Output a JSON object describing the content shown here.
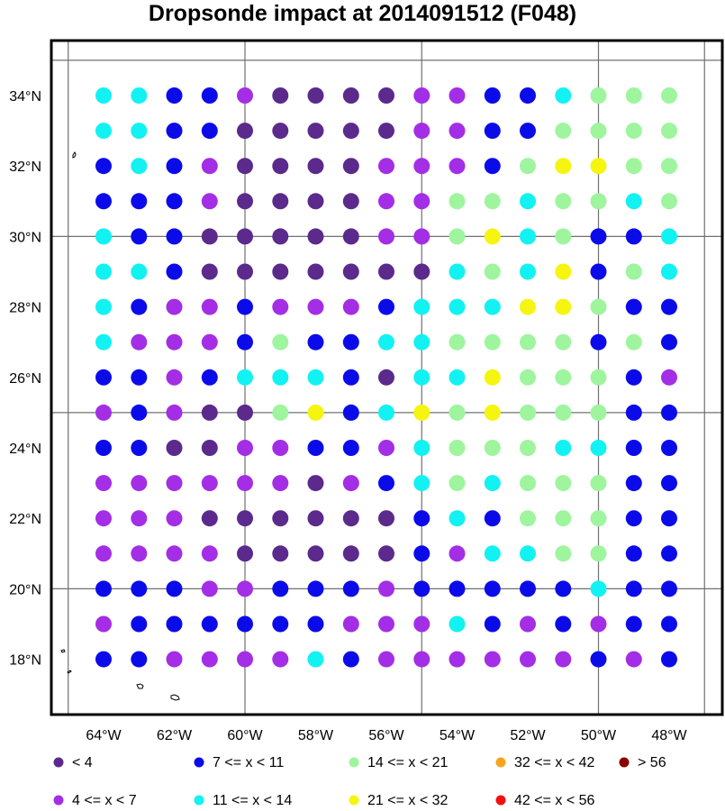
{
  "title": "Dropsonde impact at 2014091512 (F048)",
  "lon_labels": [
    "64°W",
    "62°W",
    "60°W",
    "58°W",
    "56°W",
    "54°W",
    "52°W",
    "50°W",
    "48°W"
  ],
  "lat_labels": [
    "34°N",
    "32°N",
    "30°N",
    "28°N",
    "26°N",
    "24°N",
    "22°N",
    "20°N",
    "18°N"
  ],
  "legend": [
    {
      "key": "c0",
      "label": "<  4",
      "color": "#5b2a8c"
    },
    {
      "key": "c1",
      "label": "4 <= x <  7",
      "color": "#a32ee6"
    },
    {
      "key": "c2",
      "label": "7 <= x < 11",
      "color": "#0b0bea"
    },
    {
      "key": "c3",
      "label": "11 <= x < 14",
      "color": "#12f2f2"
    },
    {
      "key": "c4",
      "label": "14 <= x < 21",
      "color": "#9ef59e"
    },
    {
      "key": "c5",
      "label": "21 <= x < 32",
      "color": "#f5f50f"
    },
    {
      "key": "c6",
      "label": "32 <= x < 42",
      "color": "#f5a51b"
    },
    {
      "key": "c7",
      "label": "42 <= x < 56",
      "color": "#f50f0f"
    },
    {
      "key": "c8",
      "label": "> 56",
      "color": "#8b0000"
    }
  ],
  "chart_data": {
    "type": "scatter",
    "title": "Dropsonde impact at 2014091512 (F048)",
    "lon_range": [
      -65.3,
      -46.9
    ],
    "lat_range": [
      16.7,
      35.5
    ],
    "grid_lon": [
      -65,
      -60,
      -55,
      -50,
      -47
    ],
    "grid_lat": [
      35,
      30,
      25,
      20
    ],
    "lons": [
      -64,
      -63,
      -62,
      -61,
      -60,
      -59,
      -58,
      -57,
      -56,
      -55,
      -54,
      -53,
      -52,
      -51,
      -50,
      -49,
      -48
    ],
    "lats": [
      34,
      33,
      32,
      31,
      30,
      29,
      28,
      27,
      26,
      25,
      24,
      23,
      22,
      21,
      20,
      19,
      18
    ],
    "categories": [
      "<  4",
      "4 <= x <  7",
      "7 <= x < 11",
      "11 <= x < 14",
      "14 <= x < 21",
      "21 <= x < 32",
      "32 <= x < 42",
      "42 <= x < 56",
      "> 56"
    ],
    "grid": [
      [
        "c3",
        "c3",
        "c2",
        "c2",
        "c1",
        "c0",
        "c0",
        "c0",
        "c0",
        "c1",
        "c1",
        "c2",
        "c2",
        "c3",
        "c4",
        "c4",
        "c4"
      ],
      [
        "c3",
        "c3",
        "c2",
        "c2",
        "c0",
        "c0",
        "c0",
        "c0",
        "c0",
        "c1",
        "c1",
        "c2",
        "c2",
        "c4",
        "c4",
        "c4",
        "c4"
      ],
      [
        "c2",
        "c3",
        "c2",
        "c1",
        "c0",
        "c0",
        "c0",
        "c0",
        "c1",
        "c1",
        "c1",
        "c2",
        "c4",
        "c5",
        "c5",
        "c4",
        "c4"
      ],
      [
        "c2",
        "c2",
        "c2",
        "c1",
        "c0",
        "c0",
        "c0",
        "c0",
        "c1",
        "c1",
        "c4",
        "c4",
        "c3",
        "c4",
        "c4",
        "c3",
        "c4"
      ],
      [
        "c3",
        "c2",
        "c2",
        "c0",
        "c0",
        "c0",
        "c0",
        "c0",
        "c1",
        "c1",
        "c4",
        "c5",
        "c3",
        "c4",
        "c2",
        "c2",
        "c3"
      ],
      [
        "c3",
        "c3",
        "c2",
        "c0",
        "c0",
        "c0",
        "c0",
        "c0",
        "c0",
        "c0",
        "c3",
        "c4",
        "c3",
        "c5",
        "c2",
        "c4",
        "c3"
      ],
      [
        "c3",
        "c2",
        "c1",
        "c1",
        "c2",
        "c1",
        "c1",
        "c1",
        "c2",
        "c3",
        "c3",
        "c3",
        "c5",
        "c5",
        "c4",
        "c2",
        "c2"
      ],
      [
        "c3",
        "c1",
        "c1",
        "c1",
        "c2",
        "c4",
        "c2",
        "c2",
        "c3",
        "c3",
        "c4",
        "c4",
        "c4",
        "c4",
        "c2",
        "c4",
        "c2"
      ],
      [
        "c2",
        "c2",
        "c1",
        "c2",
        "c3",
        "c3",
        "c3",
        "c2",
        "c0",
        "c3",
        "c3",
        "c5",
        "c4",
        "c4",
        "c4",
        "c2",
        "c1"
      ],
      [
        "c1",
        "c2",
        "c1",
        "c0",
        "c0",
        "c4",
        "c5",
        "c2",
        "c3",
        "c5",
        "c4",
        "c5",
        "c4",
        "c4",
        "c4",
        "c2",
        "c2"
      ],
      [
        "c2",
        "c2",
        "c0",
        "c0",
        "c1",
        "c1",
        "c2",
        "c2",
        "c1",
        "c3",
        "c4",
        "c4",
        "c4",
        "c3",
        "c3",
        "c2",
        "c2"
      ],
      [
        "c1",
        "c1",
        "c1",
        "c1",
        "c1",
        "c1",
        "c0",
        "c1",
        "c2",
        "c3",
        "c4",
        "c3",
        "c4",
        "c4",
        "c4",
        "c2",
        "c2"
      ],
      [
        "c1",
        "c1",
        "c1",
        "c0",
        "c0",
        "c0",
        "c0",
        "c0",
        "c0",
        "c2",
        "c3",
        "c2",
        "c4",
        "c4",
        "c4",
        "c2",
        "c2"
      ],
      [
        "c1",
        "c1",
        "c1",
        "c1",
        "c0",
        "c0",
        "c0",
        "c0",
        "c0",
        "c2",
        "c1",
        "c3",
        "c3",
        "c4",
        "c4",
        "c2",
        "c2"
      ],
      [
        "c2",
        "c2",
        "c2",
        "c1",
        "c1",
        "c2",
        "c2",
        "c2",
        "c1",
        "c2",
        "c2",
        "c2",
        "c2",
        "c2",
        "c3",
        "c2",
        "c2"
      ],
      [
        "c1",
        "c2",
        "c2",
        "c2",
        "c2",
        "c2",
        "c2",
        "c1",
        "c1",
        "c1",
        "c3",
        "c2",
        "c1",
        "c2",
        "c1",
        "c2",
        "c2"
      ],
      [
        "c2",
        "c2",
        "c1",
        "c1",
        "c1",
        "c1",
        "c3",
        "c2",
        "c1",
        "c1",
        "c1",
        "c1",
        "c1",
        "c1",
        "c2",
        "c1",
        "c2"
      ]
    ]
  }
}
